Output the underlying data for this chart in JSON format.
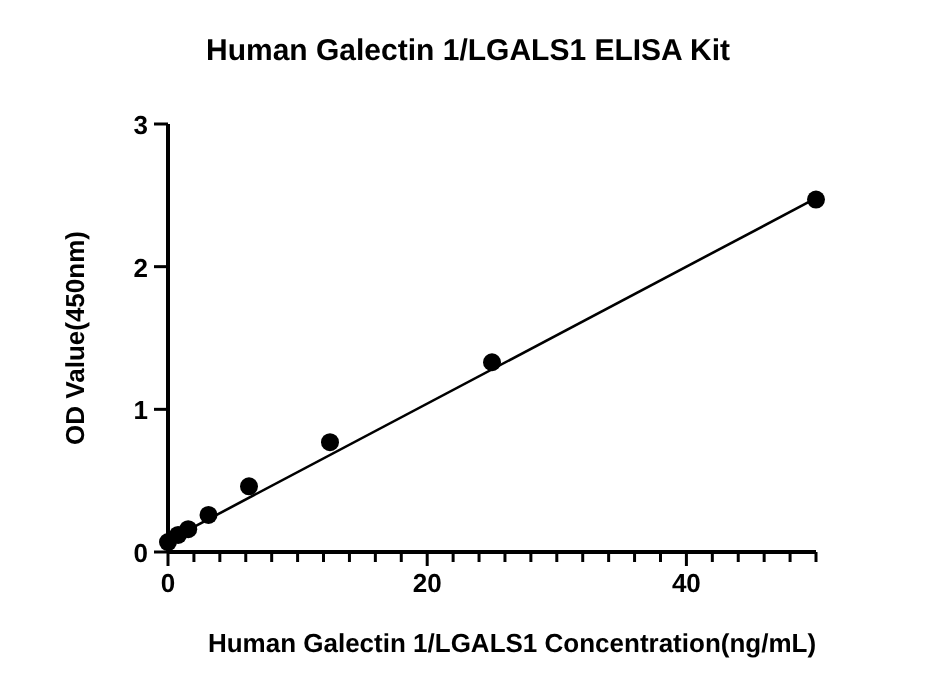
{
  "chart_data": {
    "type": "scatter",
    "title": "Human Galectin 1/LGALS1 ELISA Kit",
    "xlabel": "Human Galectin 1/LGALS1 Concentration(ng/mL)",
    "ylabel": "OD Value(450nm)",
    "xlim": [
      0,
      50
    ],
    "ylim": [
      0,
      3
    ],
    "xticks": [
      0,
      {
        "value": 2,
        "label": null
      },
      {
        "value": 4,
        "label": null
      },
      {
        "value": 6,
        "label": null
      },
      {
        "value": 8,
        "label": null
      },
      {
        "value": 10,
        "label": null
      },
      {
        "value": 12,
        "label": null
      },
      {
        "value": 14,
        "label": null
      },
      {
        "value": 16,
        "label": null
      },
      {
        "value": 18,
        "label": null
      },
      20,
      {
        "value": 22,
        "label": null
      },
      {
        "value": 24,
        "label": null
      },
      {
        "value": 26,
        "label": null
      },
      {
        "value": 28,
        "label": null
      },
      {
        "value": 30,
        "label": null
      },
      {
        "value": 32,
        "label": null
      },
      {
        "value": 34,
        "label": null
      },
      {
        "value": 36,
        "label": null
      },
      {
        "value": 38,
        "label": null
      },
      40,
      {
        "value": 42,
        "label": null
      },
      {
        "value": 44,
        "label": null
      },
      {
        "value": 46,
        "label": null
      },
      {
        "value": 48,
        "label": null
      },
      {
        "value": 50,
        "label": null
      }
    ],
    "yticks": [
      0,
      1,
      2,
      3
    ],
    "series": [
      {
        "type": "scatter",
        "color": "#000000",
        "marker": "circle",
        "x": [
          0,
          0.78,
          1.56,
          3.125,
          6.25,
          12.5,
          25,
          50
        ],
        "values": [
          0.07,
          0.12,
          0.16,
          0.26,
          0.46,
          0.77,
          1.33,
          2.47
        ]
      },
      {
        "type": "line",
        "color": "#000000",
        "marker": "none",
        "line_style": "solid",
        "x": [
          0,
          50
        ],
        "values": [
          0.08,
          2.48
        ]
      }
    ]
  }
}
